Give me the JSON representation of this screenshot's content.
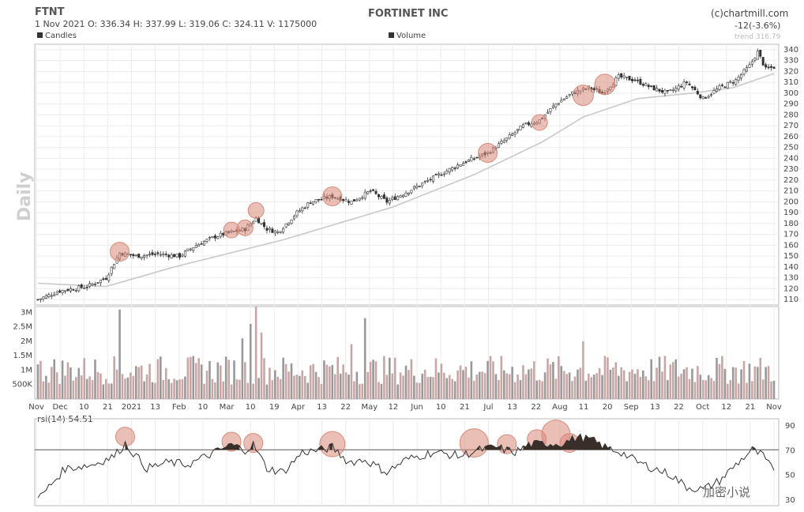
{
  "header": {
    "symbol": "FTNT",
    "ohlc_line": "1 Nov 2021   O: 336.34   H: 337.99   L: 319.06   C: 324.11   V: 1175000",
    "company": "FORTINET INC",
    "source": "(c)chartmill.com",
    "change": "-12(-3.6%)",
    "trend_label": "trend 316.79",
    "periodicity": "Daily"
  },
  "watermark": "加密小说",
  "colors": {
    "up": "#333333",
    "down": "#333333",
    "trend": "#c9c9c9",
    "highlight": "#d98a7a",
    "volume_down": "#c9a6a6",
    "volume_up": "#999999",
    "rsi": "#333333"
  },
  "chart_data": [
    {
      "type": "candlestick",
      "legend": "Candles",
      "ylim": [
        105,
        345
      ],
      "yticks": [
        110,
        120,
        130,
        140,
        150,
        160,
        170,
        180,
        190,
        200,
        210,
        220,
        230,
        240,
        250,
        260,
        270,
        280,
        290,
        300,
        310,
        320,
        330,
        340
      ],
      "x_labels": [
        "Nov",
        "Dec",
        "10",
        "21",
        "2021",
        "13",
        "Feb",
        "10",
        "Mar",
        "10",
        "19",
        "Apr",
        "13",
        "22",
        "May",
        "12",
        "Jun",
        "10",
        "21",
        "Jul",
        "13",
        "22",
        "Aug",
        "11",
        "20",
        "Sep",
        "13",
        "22",
        "Oct",
        "12",
        "21",
        "Nov"
      ],
      "close_anchors": [
        [
          0,
          110
        ],
        [
          8,
          118
        ],
        [
          18,
          122
        ],
        [
          25,
          130
        ],
        [
          30,
          153
        ],
        [
          36,
          150
        ],
        [
          44,
          152
        ],
        [
          52,
          150
        ],
        [
          58,
          160
        ],
        [
          65,
          168
        ],
        [
          71,
          172
        ],
        [
          76,
          175
        ],
        [
          80,
          185
        ],
        [
          84,
          175
        ],
        [
          88,
          172
        ],
        [
          95,
          190
        ],
        [
          100,
          200
        ],
        [
          108,
          205
        ],
        [
          115,
          200
        ],
        [
          122,
          210
        ],
        [
          128,
          200
        ],
        [
          136,
          210
        ],
        [
          145,
          222
        ],
        [
          155,
          235
        ],
        [
          160,
          240
        ],
        [
          165,
          245
        ],
        [
          172,
          258
        ],
        [
          178,
          270
        ],
        [
          184,
          275
        ],
        [
          190,
          290
        ],
        [
          196,
          300
        ],
        [
          202,
          305
        ],
        [
          207,
          300
        ],
        [
          213,
          315
        ],
        [
          219,
          312
        ],
        [
          225,
          305
        ],
        [
          231,
          300
        ],
        [
          238,
          310
        ],
        [
          244,
          295
        ],
        [
          250,
          305
        ],
        [
          256,
          312
        ],
        [
          261,
          325
        ],
        [
          264,
          338
        ],
        [
          267,
          322
        ],
        [
          270,
          324
        ]
      ],
      "trend_anchors": [
        [
          0,
          125
        ],
        [
          25,
          122
        ],
        [
          50,
          140
        ],
        [
          90,
          165
        ],
        [
          130,
          195
        ],
        [
          160,
          225
        ],
        [
          185,
          255
        ],
        [
          200,
          278
        ],
        [
          220,
          295
        ],
        [
          240,
          300
        ],
        [
          255,
          305
        ],
        [
          270,
          318
        ]
      ],
      "highlights": [
        {
          "price": 154,
          "x_index": 30
        },
        {
          "price": 174,
          "x_index": 71
        },
        {
          "price": 176,
          "x_index": 76
        },
        {
          "price": 192,
          "x_index": 80
        },
        {
          "price": 205,
          "x_index": 108
        },
        {
          "price": 245,
          "x_index": 165
        },
        {
          "price": 273,
          "x_index": 184
        },
        {
          "price": 298,
          "x_index": 200
        },
        {
          "price": 308,
          "x_index": 208
        }
      ]
    },
    {
      "type": "bar",
      "legend": "Volume",
      "ylim": [
        0,
        3200000
      ],
      "yticks_labels": [
        {
          "v": 500000,
          "t": "500K"
        },
        {
          "v": 1000000,
          "t": "1M"
        },
        {
          "v": 1500000,
          "t": "1.5M"
        },
        {
          "v": 2000000,
          "t": "2M"
        },
        {
          "v": 2500000,
          "t": "2.5M"
        },
        {
          "v": 3000000,
          "t": "3M"
        }
      ],
      "spikes": [
        [
          30,
          3100000
        ],
        [
          75,
          2100000
        ],
        [
          78,
          2600000
        ],
        [
          80,
          3200000
        ],
        [
          120,
          2800000
        ],
        [
          82,
          2300000
        ],
        [
          200,
          2000000
        ],
        [
          115,
          1900000
        ]
      ]
    },
    {
      "type": "line",
      "legend": "rsi(14) 54.51",
      "ylim": [
        25,
        95
      ],
      "yticks": [
        30,
        50,
        70,
        90
      ],
      "threshold": 70,
      "anchors": [
        [
          0,
          30
        ],
        [
          10,
          55
        ],
        [
          20,
          58
        ],
        [
          28,
          65
        ],
        [
          32,
          75
        ],
        [
          36,
          65
        ],
        [
          40,
          55
        ],
        [
          48,
          60
        ],
        [
          55,
          58
        ],
        [
          65,
          68
        ],
        [
          71,
          74
        ],
        [
          76,
          70
        ],
        [
          79,
          74
        ],
        [
          84,
          55
        ],
        [
          90,
          52
        ],
        [
          97,
          68
        ],
        [
          104,
          70
        ],
        [
          108,
          72
        ],
        [
          114,
          60
        ],
        [
          120,
          62
        ],
        [
          128,
          52
        ],
        [
          135,
          62
        ],
        [
          145,
          68
        ],
        [
          155,
          65
        ],
        [
          162,
          70
        ],
        [
          168,
          72
        ],
        [
          175,
          68
        ],
        [
          180,
          74
        ],
        [
          186,
          75
        ],
        [
          192,
          75
        ],
        [
          198,
          80
        ],
        [
          203,
          78
        ],
        [
          208,
          72
        ],
        [
          214,
          68
        ],
        [
          220,
          60
        ],
        [
          226,
          55
        ],
        [
          232,
          50
        ],
        [
          238,
          40
        ],
        [
          244,
          38
        ],
        [
          250,
          45
        ],
        [
          256,
          58
        ],
        [
          262,
          70
        ],
        [
          266,
          65
        ],
        [
          270,
          52
        ]
      ],
      "highlights": [
        {
          "value": 78,
          "x_index": 32
        },
        {
          "value": 74,
          "x_index": 71
        },
        {
          "value": 73,
          "x_index": 79
        },
        {
          "value": 72,
          "x_index": 108
        },
        {
          "value": 73,
          "x_index": 160
        },
        {
          "value": 72,
          "x_index": 172
        },
        {
          "value": 76,
          "x_index": 183
        },
        {
          "value": 80,
          "x_index": 190
        },
        {
          "value": 73,
          "x_index": 195
        }
      ]
    }
  ]
}
